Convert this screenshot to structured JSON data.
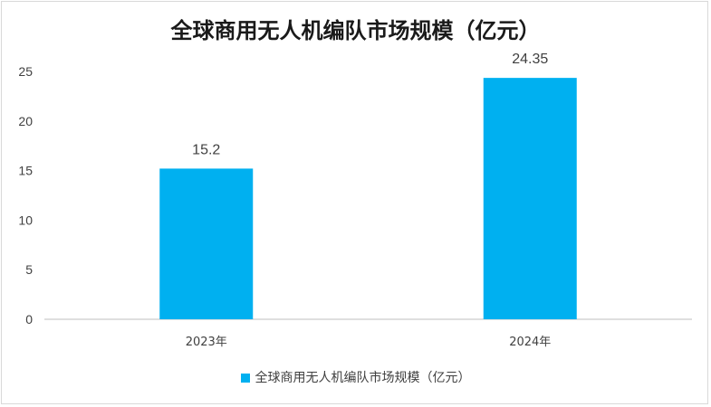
{
  "chart_data": {
    "type": "bar",
    "title": "全球商用无人机编队市场规模（亿元）",
    "categories": [
      "2023年",
      "2024年"
    ],
    "series": [
      {
        "name": "全球商用无人机编队市场规模（亿元）",
        "values": [
          15.2,
          24.35
        ],
        "labels": [
          "15.2",
          "24.35"
        ]
      }
    ],
    "yticks": [
      0,
      5,
      10,
      15,
      20,
      25
    ],
    "ylim": [
      0,
      25
    ],
    "xlabel": "",
    "ylabel": "",
    "grid": false,
    "legend": "bottom",
    "bar_color": "#00b0f0"
  }
}
